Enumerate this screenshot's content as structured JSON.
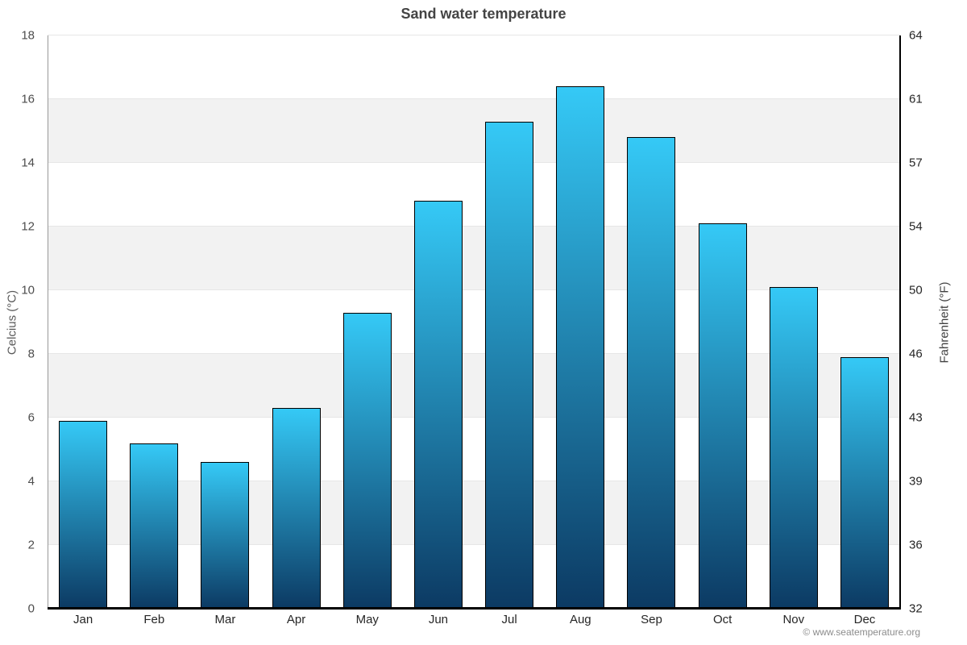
{
  "page": {
    "title": "Sand water temperature"
  },
  "chart_data": {
    "type": "bar",
    "title": "Sand water temperature",
    "categories": [
      "Jan",
      "Feb",
      "Mar",
      "Apr",
      "May",
      "Jun",
      "Jul",
      "Aug",
      "Sep",
      "Oct",
      "Nov",
      "Dec"
    ],
    "values": [
      5.9,
      5.2,
      4.6,
      6.3,
      9.3,
      12.8,
      15.3,
      16.4,
      14.8,
      12.1,
      10.1,
      7.9
    ],
    "xlabel": "",
    "ylabel": "Celcius (°C)",
    "y2label": "Fahrenheit (°F)",
    "ylim": [
      0,
      18
    ],
    "yticks": [
      0,
      2,
      4,
      6,
      8,
      10,
      12,
      14,
      16,
      18
    ],
    "y2tick_labels": [
      "32",
      "36",
      "39",
      "43",
      "46",
      "50",
      "54",
      "57",
      "61",
      "64"
    ],
    "legend": "none",
    "grid": "horizontal gridlines with alternating shaded bands",
    "band_color": "#f2f2f2",
    "gridline_color": "#e6e6e6",
    "bar_gradient_top": "#35c9f6",
    "bar_gradient_bottom": "#0c3a63",
    "bar_border_color": "#000000"
  },
  "footer": {
    "copyright": "© www.seatemperature.org"
  }
}
